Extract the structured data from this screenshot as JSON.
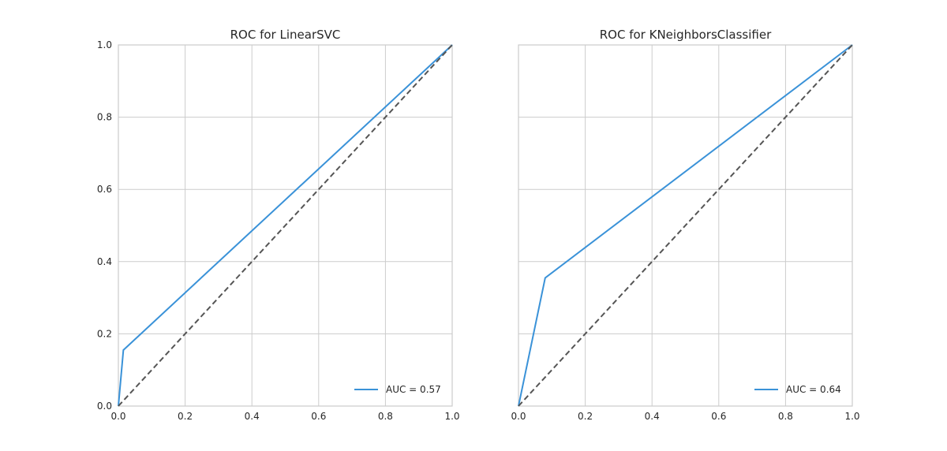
{
  "chart_data": [
    {
      "type": "line",
      "title": "ROC for LinearSVC",
      "xlabel": "",
      "ylabel": "",
      "xlim": [
        0,
        1
      ],
      "ylim": [
        0,
        1
      ],
      "xticks": [
        "0.0",
        "0.2",
        "0.4",
        "0.6",
        "0.8",
        "1.0"
      ],
      "yticks": [
        "0.0",
        "0.2",
        "0.4",
        "0.6",
        "0.8",
        "1.0"
      ],
      "grid": true,
      "legend_placement": "lower-right",
      "series": [
        {
          "name": "AUC = 0.57",
          "color": "#3a92d8",
          "style": "solid",
          "x": [
            0.0,
            0.015,
            1.0
          ],
          "y": [
            0.0,
            0.155,
            1.0
          ]
        },
        {
          "color": "#555555",
          "style": "dashed",
          "x": [
            0.0,
            1.0
          ],
          "y": [
            0.0,
            1.0
          ]
        }
      ]
    },
    {
      "type": "line",
      "title": "ROC for KNeighborsClassifier",
      "xlabel": "",
      "ylabel": "",
      "xlim": [
        0,
        1
      ],
      "ylim": [
        0,
        1
      ],
      "xticks": [
        "0.0",
        "0.2",
        "0.4",
        "0.6",
        "0.8",
        "1.0"
      ],
      "yticks": [],
      "grid": true,
      "legend_placement": "lower-right",
      "series": [
        {
          "name": "AUC = 0.64",
          "color": "#3a92d8",
          "style": "solid",
          "x": [
            0.0,
            0.08,
            1.0
          ],
          "y": [
            0.0,
            0.355,
            1.0
          ]
        },
        {
          "color": "#555555",
          "style": "dashed",
          "x": [
            0.0,
            1.0
          ],
          "y": [
            0.0,
            1.0
          ]
        }
      ]
    }
  ]
}
